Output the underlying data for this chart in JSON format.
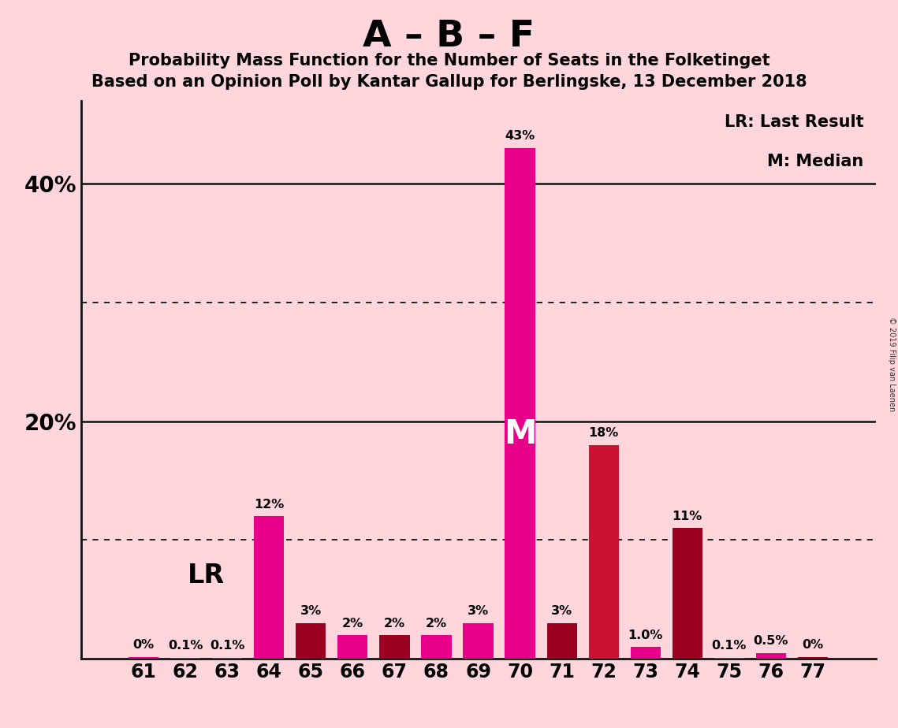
{
  "title_main": "A – B – F",
  "title_sub1": "Probability Mass Function for the Number of Seats in the Folketinget",
  "title_sub2": "Based on an Opinion Poll by Kantar Gallup for Berlingske, 13 December 2018",
  "copyright": "© 2019 Filip van Laenen",
  "seats": [
    61,
    62,
    63,
    64,
    65,
    66,
    67,
    68,
    69,
    70,
    71,
    72,
    73,
    74,
    75,
    76,
    77
  ],
  "values": [
    0.15,
    0.1,
    0.1,
    12.0,
    3.0,
    2.0,
    2.0,
    2.0,
    3.0,
    43.0,
    3.0,
    18.0,
    1.0,
    11.0,
    0.1,
    0.5,
    0.15
  ],
  "labels": [
    "0%",
    "0.1%",
    "0.1%",
    "12%",
    "3%",
    "2%",
    "2%",
    "2%",
    "3%",
    "43%",
    "3%",
    "18%",
    "1.0%",
    "11%",
    "0.1%",
    "0.5%",
    "0%"
  ],
  "bar_colors": [
    "#E8008A",
    "#E8008A",
    "#E8008A",
    "#E8008A",
    "#9B0020",
    "#E8008A",
    "#9B0020",
    "#E8008A",
    "#E8008A",
    "#E8008A",
    "#9B0020",
    "#CC1133",
    "#E8008A",
    "#9B0020",
    "#E8008A",
    "#E8008A",
    "#9B0020"
  ],
  "median_seat": 70,
  "background_color": "#FFD6DC",
  "grid_color": "#111111",
  "ylim_max": 47,
  "dotted_grid": [
    10,
    30
  ],
  "solid_grid": [
    20,
    40
  ],
  "ytick_positions": [
    20,
    40
  ],
  "ytick_labels": [
    "20%",
    "40%"
  ],
  "legend_lr": "LR: Last Result",
  "legend_m": "M: Median",
  "bar_width": 0.72
}
